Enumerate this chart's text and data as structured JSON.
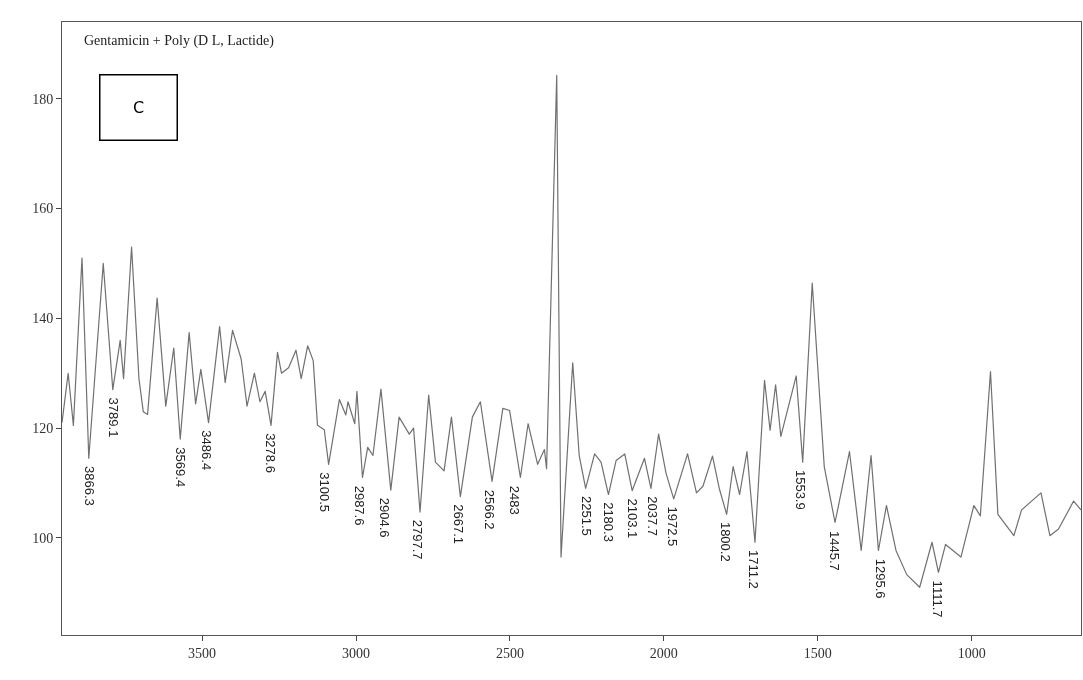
{
  "chart_data": {
    "type": "line",
    "title": "Gentamicin + Poly (D L, Lactide)",
    "annotations": [
      "C",
      {
        "text": "3866.3",
        "x": 3866.3,
        "y": 114.5
      },
      {
        "text": "3789.1",
        "x": 3789.1,
        "y": 127
      },
      {
        "text": "3569.4",
        "x": 3569.4,
        "y": 118
      },
      {
        "text": "3486.4",
        "x": 3486.4,
        "y": 121
      },
      {
        "text": "3278.6",
        "x": 3278.6,
        "y": 120.5
      },
      {
        "text": "3100.5",
        "x": 3100.5,
        "y": 113.4
      },
      {
        "text": "2987.6",
        "x": 2987.6,
        "y": 111
      },
      {
        "text": "2904.6",
        "x": 2904.6,
        "y": 108.7
      },
      {
        "text": "2797.7",
        "x": 2797.7,
        "y": 104.7
      },
      {
        "text": "2667.1",
        "x": 2667.1,
        "y": 107.5
      },
      {
        "text": "2566.2",
        "x": 2566.2,
        "y": 110.3
      },
      {
        "text": "2483",
        "x": 2483,
        "y": 111
      },
      {
        "text": "2251.5",
        "x": 2251.5,
        "y": 109
      },
      {
        "text": "2180.3",
        "x": 2180.3,
        "y": 107.9
      },
      {
        "text": "2103.1",
        "x": 2103.1,
        "y": 108.6
      },
      {
        "text": "2037.7",
        "x": 2037.7,
        "y": 109
      },
      {
        "text": "1972.5",
        "x": 1972.5,
        "y": 107.1
      },
      {
        "text": "1800.2",
        "x": 1800.2,
        "y": 104.3
      },
      {
        "text": "1711.2",
        "x": 1711.2,
        "y": 99.2
      },
      {
        "text": "1553.9",
        "x": 1553.9,
        "y": 113.8
      },
      {
        "text": "1445.7",
        "x": 1445.7,
        "y": 102.8
      },
      {
        "text": "1295.6",
        "x": 1295.6,
        "y": 97.7
      },
      {
        "text": "1111.7",
        "x": 1111.7,
        "y": 93.7
      }
    ],
    "x": [
      3955,
      3935,
      3918,
      3890,
      3868,
      3821,
      3790,
      3766,
      3755,
      3729,
      3705,
      3691,
      3677,
      3646,
      3618,
      3592,
      3571,
      3542,
      3521,
      3504,
      3479,
      3443,
      3425,
      3401,
      3373,
      3354,
      3330,
      3312,
      3295,
      3276,
      3255,
      3242,
      3219,
      3195,
      3178,
      3157,
      3139,
      3125,
      3103,
      3089,
      3054,
      3033,
      3026,
      3004,
      2997,
      2979,
      2962,
      2945,
      2919,
      2887,
      2860,
      2827,
      2813,
      2792,
      2764,
      2742,
      2714,
      2690,
      2661,
      2622,
      2596,
      2558,
      2523,
      2501,
      2466,
      2441,
      2410,
      2388,
      2381,
      2348,
      2334,
      2296,
      2275,
      2254,
      2225,
      2204,
      2180,
      2155,
      2127,
      2103,
      2063,
      2042,
      2017,
      1993,
      1968,
      1923,
      1894,
      1873,
      1842,
      1820,
      1796,
      1775,
      1754,
      1730,
      1704,
      1673,
      1655,
      1637,
      1620,
      1570,
      1549,
      1518,
      1479,
      1444,
      1397,
      1359,
      1327,
      1303,
      1277,
      1246,
      1211,
      1169,
      1129,
      1108,
      1085,
      1035,
      993,
      972,
      939,
      915,
      863,
      838,
      775,
      746,
      718,
      669,
      645
    ],
    "series": [
      {
        "color": "#707070",
        "values": [
          121,
          130,
          120.5,
          151,
          114.5,
          150,
          127,
          136,
          129,
          153,
          129,
          123,
          122.5,
          143.7,
          124,
          134.6,
          118,
          137.4,
          124.4,
          130.7,
          121,
          138.5,
          128.3,
          137.8,
          132.6,
          124,
          130,
          124.8,
          126.7,
          120.5,
          133.8,
          130,
          131,
          134.2,
          129,
          135,
          132.3,
          120.5,
          119.7,
          113.4,
          125.2,
          122.4,
          124.8,
          120.8,
          126.7,
          111,
          116.5,
          115,
          127.1,
          108.7,
          122,
          118.9,
          120,
          104.7,
          126,
          113.8,
          112.2,
          122,
          107.5,
          122,
          124.8,
          110.3,
          123.6,
          123.2,
          111,
          120.8,
          113.4,
          116.1,
          112.6,
          184.3,
          96.5,
          131.9,
          115,
          109,
          115.3,
          113.8,
          107.9,
          114.1,
          115.3,
          108.6,
          114.5,
          109,
          118.9,
          111.8,
          107.1,
          115.3,
          108.2,
          109.4,
          114.9,
          109,
          104.3,
          113,
          107.9,
          115.7,
          99.2,
          128.7,
          119.6,
          127.9,
          118.5,
          129.5,
          113.8,
          146.4,
          113,
          102.8,
          115.7,
          97.7,
          115,
          97.7,
          105.9,
          97.7,
          93.3,
          91,
          99.2,
          93.7,
          98.8,
          96.5,
          105.9,
          104,
          130.3,
          104.3,
          100.4,
          105.1,
          108.2,
          100.4,
          101.6,
          106.7,
          105.1
        ]
      }
    ],
    "xlim": [
      3955,
      645
    ],
    "xticks": [
      3500,
      3000,
      2500,
      2000,
      1500,
      1000
    ],
    "ylim": [
      82.3,
      194
    ],
    "yticks": [
      100,
      120,
      140,
      160,
      180
    ],
    "marker": "none",
    "line_style": "solid"
  }
}
